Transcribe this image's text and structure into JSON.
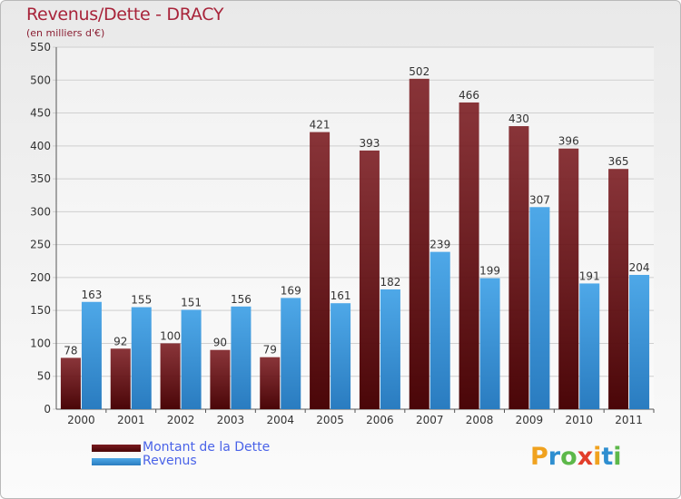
{
  "title": "Revenus/Dette - DRACY",
  "subtitle": "(en milliers d'€)",
  "logo": {
    "text": "Proxiti",
    "letters": [
      "P",
      "r",
      "o",
      "x",
      "i",
      "t",
      "i"
    ],
    "colors": [
      "#f0a21f",
      "#2e8ed0",
      "#5db84a",
      "#e23d2a",
      "#f0a21f",
      "#2e8ed0",
      "#5db84a"
    ]
  },
  "colors": {
    "dette": "#7a1a1f",
    "dette_dark": "#4a0608",
    "revenus": "#4ea8e8",
    "revenus_dark": "#2a7cc0",
    "grid": "#cfcfcf",
    "text": "#333333",
    "title": "#a8243a"
  },
  "chart_data": {
    "type": "bar",
    "categories": [
      "2000",
      "2001",
      "2002",
      "2003",
      "2004",
      "2005",
      "2006",
      "2007",
      "2008",
      "2009",
      "2010",
      "2011"
    ],
    "series": [
      {
        "name": "Montant de la Dette",
        "values": [
          78,
          92,
          100,
          90,
          79,
          421,
          393,
          502,
          466,
          430,
          396,
          365
        ]
      },
      {
        "name": "Revenus",
        "values": [
          163,
          155,
          151,
          156,
          169,
          161,
          182,
          239,
          199,
          307,
          191,
          204
        ]
      }
    ],
    "ylim": [
      0,
      550
    ],
    "yticks": [
      0,
      50,
      100,
      150,
      200,
      250,
      300,
      350,
      400,
      450,
      500,
      550
    ],
    "grid": true,
    "legend": "bottom-left"
  }
}
